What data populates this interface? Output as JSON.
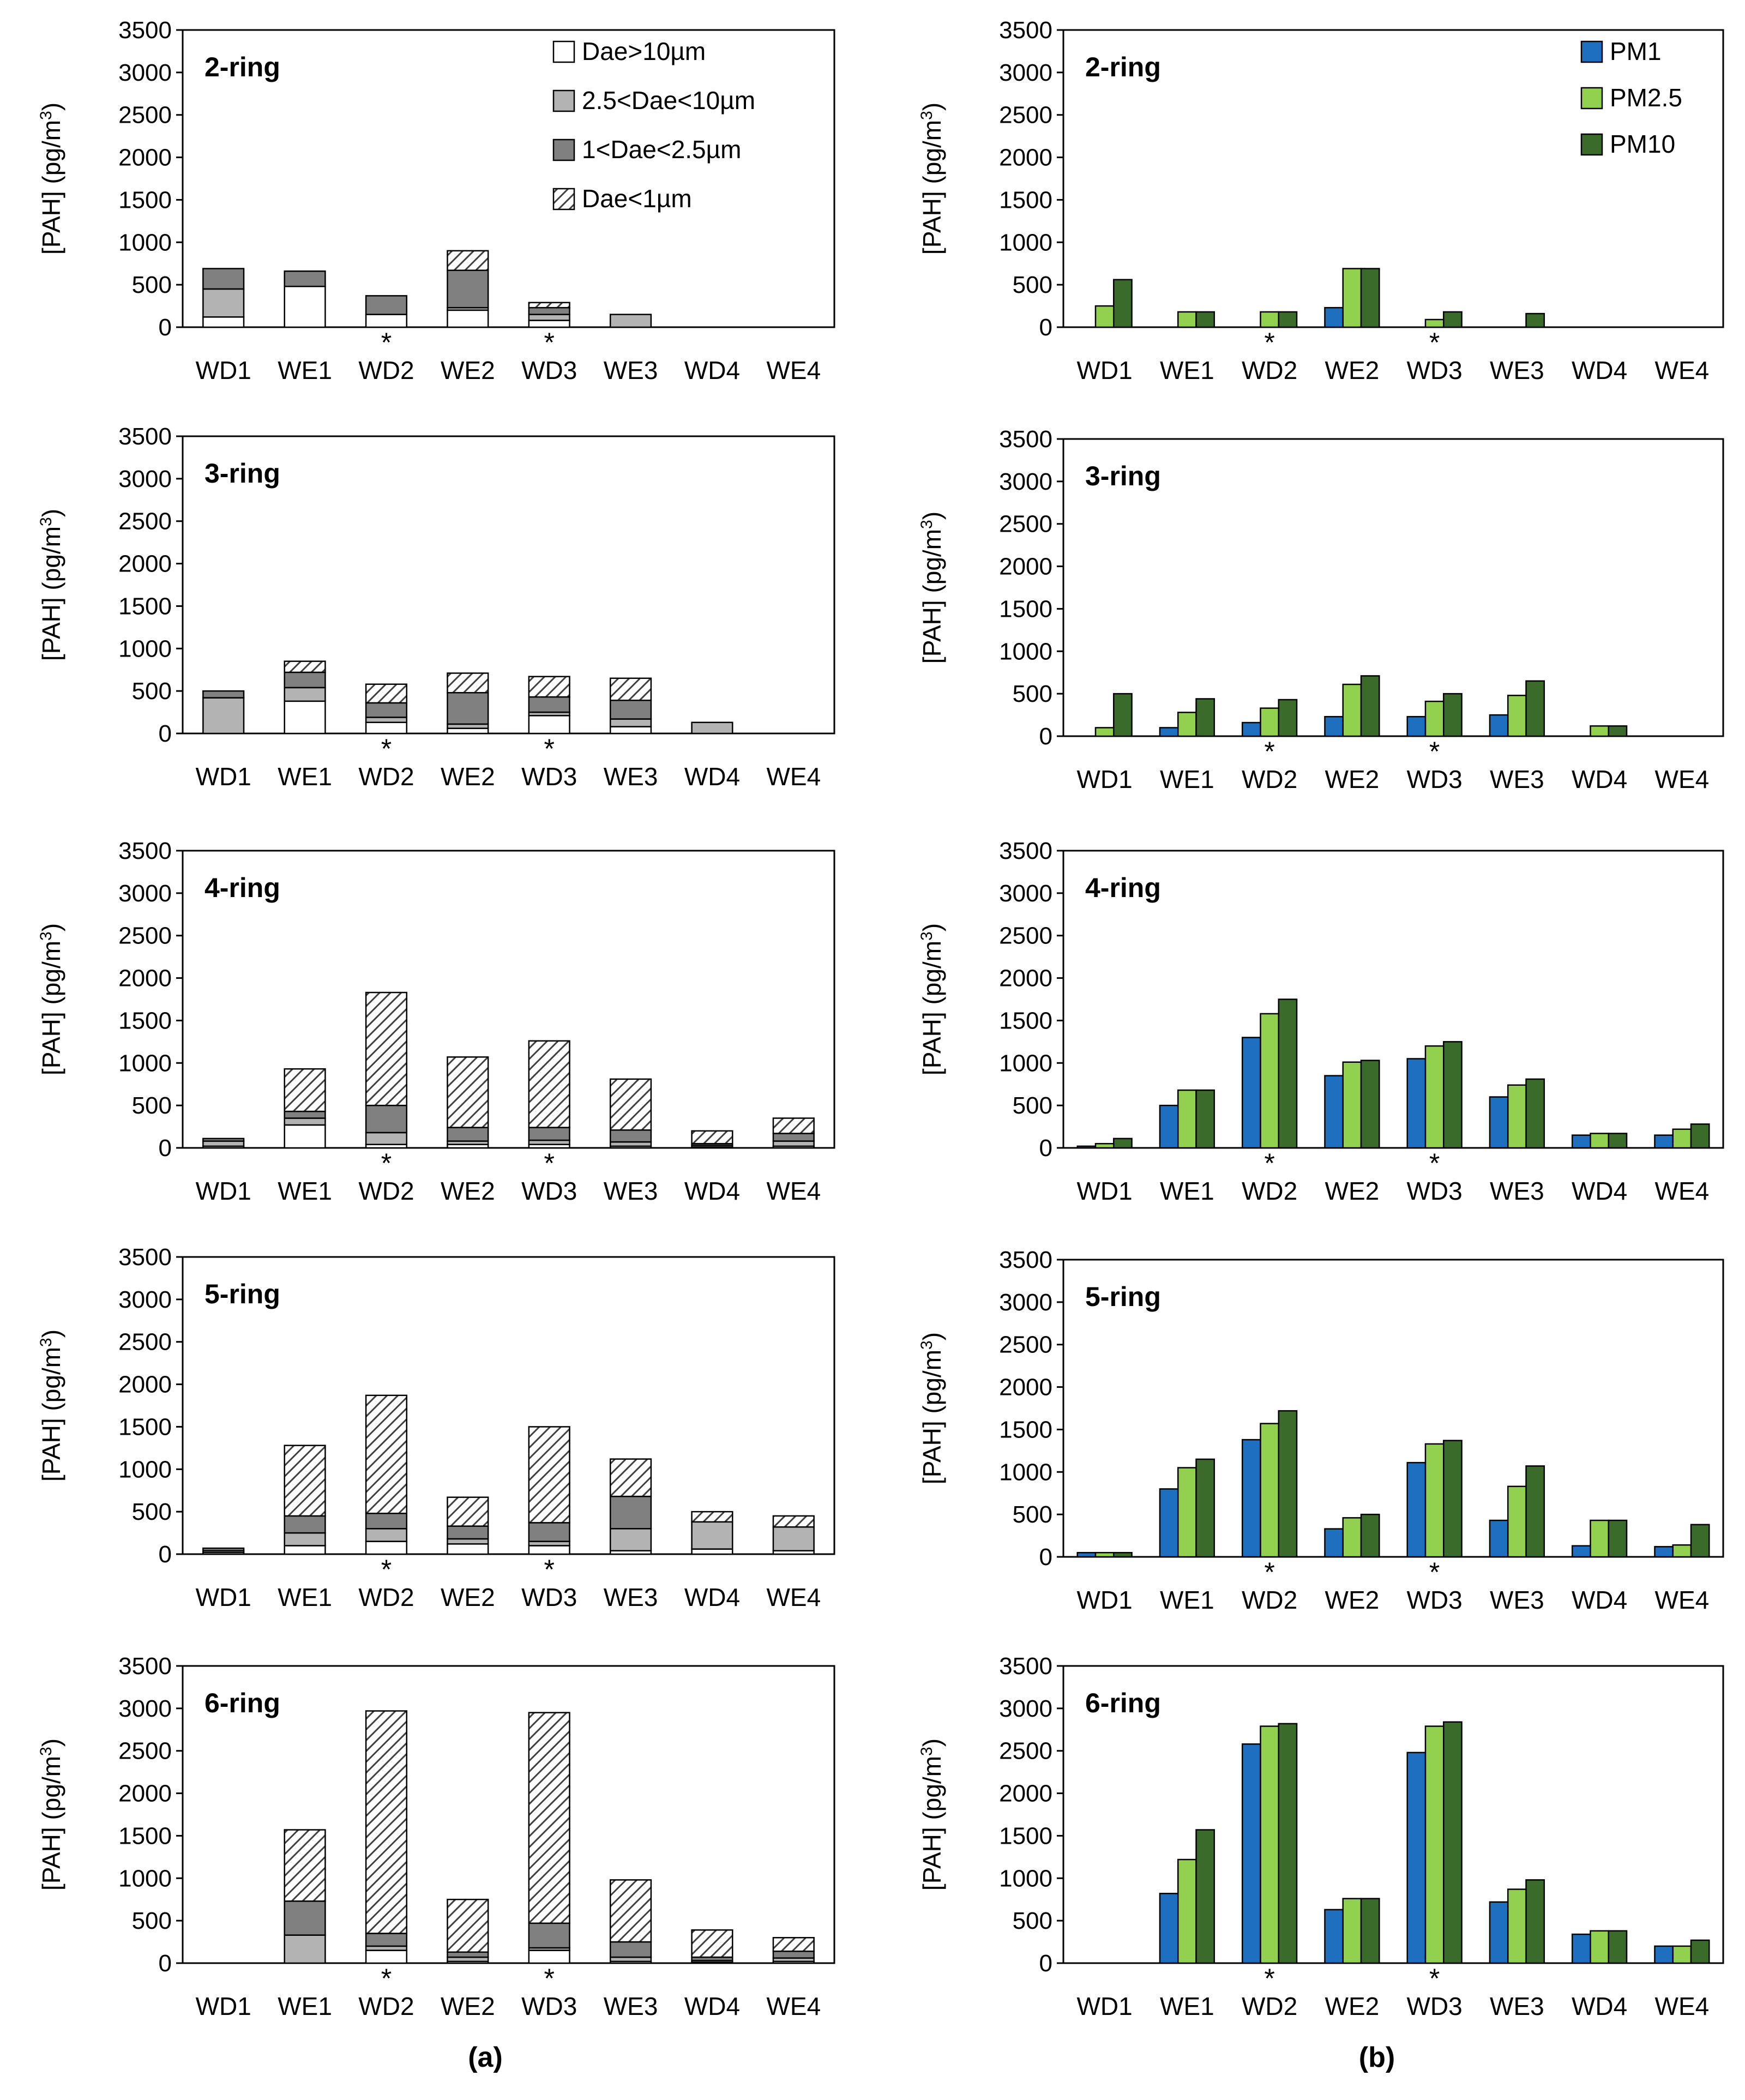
{
  "figure": {
    "panel_labels": {
      "a": "(a)",
      "b": "(b)"
    },
    "marker_note": "*",
    "colors": {
      "dae_gt10": "#ffffff",
      "dae_2_5_10": "#b3b3b3",
      "dae_1_2_5": "#808080",
      "dae_lt1_hatch": "#404040",
      "pm1": "#1f6fc1",
      "pm2_5": "#92d050",
      "pm10": "#3a6b2a",
      "axis": "#000000"
    }
  },
  "chart_data": [
    {
      "panel": "a",
      "type": "bar",
      "stacked": true,
      "title": "2-ring",
      "ylabel": "[PAH] (pg/m3)",
      "ylim": [
        0,
        3500
      ],
      "yticks": [
        0,
        500,
        1000,
        1500,
        2000,
        2500,
        3000,
        3500
      ],
      "categories": [
        "WD1",
        "WE1",
        "WD2",
        "WE2",
        "WD3",
        "WE3",
        "WD4",
        "WE4"
      ],
      "asterisk_categories": [
        "WD2",
        "WD3"
      ],
      "legend": "top-right",
      "series": [
        {
          "name": "Dae>10µm",
          "values": [
            120,
            480,
            150,
            200,
            80,
            0,
            0,
            0
          ]
        },
        {
          "name": "2.5<Dae<10µm",
          "values": [
            330,
            0,
            0,
            30,
            70,
            150,
            0,
            0
          ]
        },
        {
          "name": "1<Dae<2.5µm",
          "values": [
            240,
            180,
            220,
            440,
            80,
            0,
            0,
            0
          ]
        },
        {
          "name": "Dae<1µm",
          "values": [
            0,
            0,
            0,
            230,
            60,
            0,
            0,
            0
          ]
        }
      ]
    },
    {
      "panel": "a",
      "type": "bar",
      "stacked": true,
      "title": "3-ring",
      "ylabel": "[PAH] (pg/m3)",
      "ylim": [
        0,
        3500
      ],
      "yticks": [
        0,
        500,
        1000,
        1500,
        2000,
        2500,
        3000,
        3500
      ],
      "categories": [
        "WD1",
        "WE1",
        "WD2",
        "WE2",
        "WD3",
        "WE3",
        "WD4",
        "WE4"
      ],
      "asterisk_categories": [
        "WD2",
        "WD3"
      ],
      "series": [
        {
          "name": "Dae>10µm",
          "values": [
            0,
            380,
            130,
            60,
            210,
            80,
            0,
            0
          ]
        },
        {
          "name": "2.5<Dae<10µm",
          "values": [
            420,
            160,
            60,
            50,
            40,
            90,
            130,
            0
          ]
        },
        {
          "name": "1<Dae<2.5µm",
          "values": [
            80,
            180,
            170,
            370,
            180,
            220,
            0,
            0
          ]
        },
        {
          "name": "Dae<1µm",
          "values": [
            0,
            130,
            220,
            230,
            240,
            260,
            0,
            0
          ]
        }
      ]
    },
    {
      "panel": "a",
      "type": "bar",
      "stacked": true,
      "title": "4-ring",
      "ylabel": "[PAH] (pg/m3)",
      "ylim": [
        0,
        3500
      ],
      "yticks": [
        0,
        500,
        1000,
        1500,
        2000,
        2500,
        3000,
        3500
      ],
      "categories": [
        "WD1",
        "WE1",
        "WD2",
        "WE2",
        "WD3",
        "WE3",
        "WD4",
        "WE4"
      ],
      "asterisk_categories": [
        "WD2",
        "WD3"
      ],
      "series": [
        {
          "name": "Dae>10µm",
          "values": [
            20,
            270,
            40,
            40,
            40,
            20,
            10,
            20
          ]
        },
        {
          "name": "2.5<Dae<10µm",
          "values": [
            60,
            80,
            140,
            40,
            50,
            50,
            20,
            60
          ]
        },
        {
          "name": "1<Dae<2.5µm",
          "values": [
            30,
            80,
            320,
            160,
            150,
            140,
            20,
            90
          ]
        },
        {
          "name": "Dae<1µm",
          "values": [
            0,
            500,
            1330,
            830,
            1020,
            600,
            150,
            180
          ]
        }
      ]
    },
    {
      "panel": "a",
      "type": "bar",
      "stacked": true,
      "title": "5-ring",
      "ylabel": "[PAH] (pg/m3)",
      "ylim": [
        0,
        3500
      ],
      "yticks": [
        0,
        500,
        1000,
        1500,
        2000,
        2500,
        3000,
        3500
      ],
      "categories": [
        "WD1",
        "WE1",
        "WD2",
        "WE2",
        "WD3",
        "WE3",
        "WD4",
        "WE4"
      ],
      "asterisk_categories": [
        "WD2",
        "WD3"
      ],
      "series": [
        {
          "name": "Dae>10µm",
          "values": [
            20,
            100,
            150,
            120,
            100,
            40,
            60,
            40
          ]
        },
        {
          "name": "2.5<Dae<10µm",
          "values": [
            20,
            150,
            150,
            60,
            50,
            260,
            320,
            280
          ]
        },
        {
          "name": "1<Dae<2.5µm",
          "values": [
            30,
            200,
            180,
            150,
            220,
            380,
            0,
            0
          ]
        },
        {
          "name": "Dae<1µm",
          "values": [
            0,
            830,
            1390,
            340,
            1130,
            440,
            120,
            130
          ]
        }
      ]
    },
    {
      "panel": "a",
      "type": "bar",
      "stacked": true,
      "title": "6-ring",
      "ylabel": "[PAH] (pg/m3)",
      "ylim": [
        0,
        3500
      ],
      "yticks": [
        0,
        500,
        1000,
        1500,
        2000,
        2500,
        3000,
        3500
      ],
      "categories": [
        "WD1",
        "WE1",
        "WD2",
        "WE2",
        "WD3",
        "WE3",
        "WD4",
        "WE4"
      ],
      "asterisk_categories": [
        "WD2",
        "WD3"
      ],
      "series": [
        {
          "name": "Dae>10µm",
          "values": [
            0,
            0,
            150,
            20,
            150,
            20,
            10,
            20
          ]
        },
        {
          "name": "2.5<Dae<10µm",
          "values": [
            0,
            330,
            50,
            50,
            30,
            50,
            20,
            40
          ]
        },
        {
          "name": "1<Dae<2.5µm",
          "values": [
            0,
            400,
            150,
            60,
            290,
            180,
            40,
            80
          ]
        },
        {
          "name": "Dae<1µm",
          "values": [
            0,
            840,
            2620,
            620,
            2480,
            730,
            320,
            160
          ]
        }
      ]
    },
    {
      "panel": "b",
      "type": "bar",
      "stacked": false,
      "title": "2-ring",
      "ylabel": "[PAH] (pg/m3)",
      "ylim": [
        0,
        3500
      ],
      "yticks": [
        0,
        500,
        1000,
        1500,
        2000,
        2500,
        3000,
        3500
      ],
      "categories": [
        "WD1",
        "WE1",
        "WD2",
        "WE2",
        "WD3",
        "WE3",
        "WD4",
        "WE4"
      ],
      "asterisk_categories": [
        "WD2",
        "WD3"
      ],
      "legend": "top-right",
      "series": [
        {
          "name": "PM1",
          "values": [
            0,
            0,
            0,
            230,
            0,
            0,
            0,
            0
          ]
        },
        {
          "name": "PM2.5",
          "values": [
            250,
            180,
            180,
            690,
            90,
            0,
            0,
            0
          ]
        },
        {
          "name": "PM10",
          "values": [
            560,
            180,
            180,
            690,
            180,
            160,
            0,
            0
          ]
        }
      ]
    },
    {
      "panel": "b",
      "type": "bar",
      "stacked": false,
      "title": "3-ring",
      "ylabel": "[PAH] (pg/m3)",
      "ylim": [
        0,
        3500
      ],
      "yticks": [
        0,
        500,
        1000,
        1500,
        2000,
        2500,
        3000,
        3500
      ],
      "categories": [
        "WD1",
        "WE1",
        "WD2",
        "WE2",
        "WD3",
        "WE3",
        "WD4",
        "WE4"
      ],
      "asterisk_categories": [
        "WD2",
        "WD3"
      ],
      "series": [
        {
          "name": "PM1",
          "values": [
            0,
            100,
            160,
            230,
            230,
            250,
            0,
            0
          ]
        },
        {
          "name": "PM2.5",
          "values": [
            100,
            280,
            330,
            610,
            410,
            480,
            120,
            0
          ]
        },
        {
          "name": "PM10",
          "values": [
            500,
            440,
            430,
            710,
            500,
            650,
            120,
            0
          ]
        }
      ]
    },
    {
      "panel": "b",
      "type": "bar",
      "stacked": false,
      "title": "4-ring",
      "ylabel": "[PAH] (pg/m3)",
      "ylim": [
        0,
        3500
      ],
      "yticks": [
        0,
        500,
        1000,
        1500,
        2000,
        2500,
        3000,
        3500
      ],
      "categories": [
        "WD1",
        "WE1",
        "WD2",
        "WE2",
        "WD3",
        "WE3",
        "WD4",
        "WE4"
      ],
      "asterisk_categories": [
        "WD2",
        "WD3"
      ],
      "series": [
        {
          "name": "PM1",
          "values": [
            20,
            500,
            1300,
            850,
            1050,
            600,
            150,
            150
          ]
        },
        {
          "name": "PM2.5",
          "values": [
            50,
            680,
            1580,
            1010,
            1200,
            740,
            170,
            220
          ]
        },
        {
          "name": "PM10",
          "values": [
            110,
            680,
            1750,
            1030,
            1250,
            810,
            170,
            280
          ]
        }
      ]
    },
    {
      "panel": "b",
      "type": "bar",
      "stacked": false,
      "title": "5-ring",
      "ylabel": "[PAH] (pg/m3)",
      "ylim": [
        0,
        3500
      ],
      "yticks": [
        0,
        500,
        1000,
        1500,
        2000,
        2500,
        3000,
        3500
      ],
      "categories": [
        "WD1",
        "WE1",
        "WD2",
        "WE2",
        "WD3",
        "WE3",
        "WD4",
        "WE4"
      ],
      "asterisk_categories": [
        "WD2",
        "WD3"
      ],
      "series": [
        {
          "name": "PM1",
          "values": [
            50,
            800,
            1380,
            330,
            1110,
            430,
            130,
            120
          ]
        },
        {
          "name": "PM2.5",
          "values": [
            50,
            1050,
            1570,
            460,
            1330,
            830,
            430,
            140
          ]
        },
        {
          "name": "PM10",
          "values": [
            50,
            1150,
            1720,
            500,
            1370,
            1070,
            430,
            380
          ]
        }
      ]
    },
    {
      "panel": "b",
      "type": "bar",
      "stacked": false,
      "title": "6-ring",
      "ylabel": "[PAH] (pg/m3)",
      "ylim": [
        0,
        3500
      ],
      "yticks": [
        0,
        500,
        1000,
        1500,
        2000,
        2500,
        3000,
        3500
      ],
      "categories": [
        "WD1",
        "WE1",
        "WD2",
        "WE2",
        "WD3",
        "WE3",
        "WD4",
        "WE4"
      ],
      "asterisk_categories": [
        "WD2",
        "WD3"
      ],
      "series": [
        {
          "name": "PM1",
          "values": [
            0,
            820,
            2580,
            630,
            2480,
            720,
            340,
            200
          ]
        },
        {
          "name": "PM2.5",
          "values": [
            0,
            1220,
            2790,
            760,
            2790,
            870,
            380,
            200
          ]
        },
        {
          "name": "PM10",
          "values": [
            0,
            1570,
            2820,
            760,
            2840,
            980,
            380,
            270
          ]
        }
      ]
    }
  ]
}
